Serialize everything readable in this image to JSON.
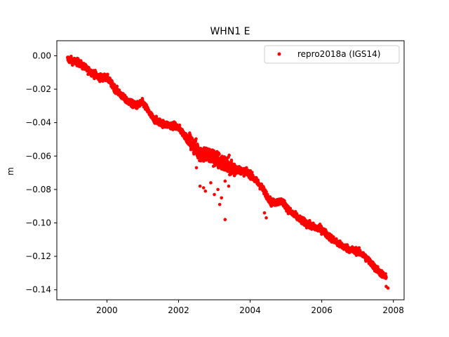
{
  "chart_data": {
    "type": "scatter",
    "title": "WHN1 E",
    "xlabel": "",
    "ylabel": "m",
    "xlim": [
      1998.6,
      2008.3
    ],
    "ylim": [
      -0.146,
      0.009
    ],
    "xticks": [
      "2000",
      "2002",
      "2004",
      "2006",
      "2008"
    ],
    "yticks": [
      "0.00",
      "−0.02",
      "−0.04",
      "−0.06",
      "−0.08",
      "−0.10",
      "−0.12",
      "−0.14"
    ],
    "grid": false,
    "legend_position": "top-right",
    "series": [
      {
        "name": "repro2018a (IGS14)",
        "color": "#ff0000",
        "trend": [
          [
            1998.9,
            -0.002
          ],
          [
            1999.2,
            -0.004
          ],
          [
            1999.5,
            -0.009
          ],
          [
            1999.8,
            -0.013
          ],
          [
            2000.0,
            -0.013
          ],
          [
            2000.2,
            -0.019
          ],
          [
            2000.5,
            -0.026
          ],
          [
            2000.8,
            -0.03
          ],
          [
            2001.0,
            -0.028
          ],
          [
            2001.3,
            -0.038
          ],
          [
            2001.6,
            -0.041
          ],
          [
            2001.9,
            -0.042
          ],
          [
            2002.0,
            -0.043
          ],
          [
            2002.3,
            -0.051
          ],
          [
            2002.6,
            -0.058
          ],
          [
            2002.9,
            -0.06
          ],
          [
            2003.2,
            -0.064
          ],
          [
            2003.5,
            -0.067
          ],
          [
            2003.8,
            -0.069
          ],
          [
            2004.0,
            -0.071
          ],
          [
            2004.3,
            -0.078
          ],
          [
            2004.6,
            -0.088
          ],
          [
            2004.9,
            -0.087
          ],
          [
            2005.1,
            -0.093
          ],
          [
            2005.4,
            -0.098
          ],
          [
            2005.7,
            -0.102
          ],
          [
            2006.0,
            -0.104
          ],
          [
            2006.2,
            -0.108
          ],
          [
            2006.5,
            -0.113
          ],
          [
            2006.8,
            -0.116
          ],
          [
            2007.0,
            -0.117
          ],
          [
            2007.2,
            -0.12
          ],
          [
            2007.5,
            -0.127
          ],
          [
            2007.8,
            -0.133
          ]
        ],
        "outliers": [
          [
            2002.5,
            -0.067
          ],
          [
            2002.6,
            -0.078
          ],
          [
            2002.7,
            -0.079
          ],
          [
            2002.75,
            -0.081
          ],
          [
            2002.9,
            -0.076
          ],
          [
            2003.0,
            -0.083
          ],
          [
            2003.1,
            -0.08
          ],
          [
            2003.2,
            -0.085
          ],
          [
            2003.3,
            -0.075
          ],
          [
            2003.15,
            -0.089
          ],
          [
            2003.3,
            -0.098
          ],
          [
            2003.4,
            -0.078
          ],
          [
            2004.4,
            -0.094
          ],
          [
            2004.45,
            -0.097
          ],
          [
            2007.8,
            -0.138
          ],
          [
            2007.85,
            -0.139
          ]
        ]
      }
    ]
  }
}
